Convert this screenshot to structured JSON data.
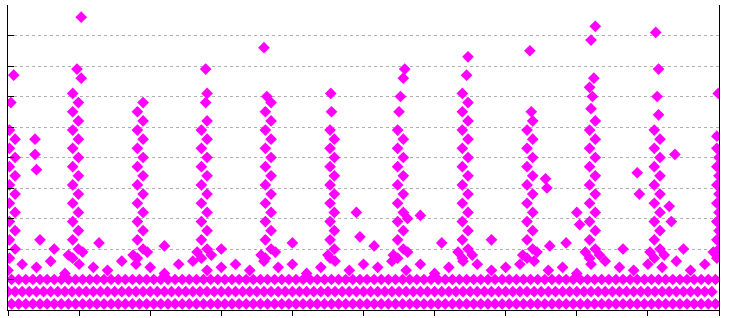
{
  "chart_data": {
    "type": "scatter",
    "color": "#ff00ff",
    "marker": "diamond",
    "grid": true,
    "tick_labels": false,
    "xlim": [
      0,
      10
    ],
    "xticks": [
      0,
      1,
      2,
      3,
      4,
      5,
      6,
      7,
      8,
      9,
      10
    ],
    "ylim": [
      0,
      10
    ],
    "yticks": [
      0,
      1,
      2,
      3,
      4,
      5,
      6,
      7,
      8,
      9,
      10
    ],
    "x": [
      0.05,
      0.15,
      0.25,
      0.35,
      0.45,
      0.55,
      0.65,
      0.75,
      0.85,
      0.95,
      1.05,
      1.15,
      1.25,
      1.35,
      1.45,
      1.55,
      1.65,
      1.75,
      1.85,
      1.95,
      2.05,
      2.15,
      2.25,
      2.35,
      2.45,
      2.55,
      2.65,
      2.75,
      2.85,
      2.95,
      3.05,
      3.15,
      3.25,
      3.35,
      3.45,
      3.55,
      3.65,
      3.75,
      3.85,
      3.95,
      4.05,
      4.15,
      4.25,
      4.35,
      4.45,
      4.55,
      4.65,
      4.75,
      4.85,
      4.95,
      5.05,
      5.15,
      5.25,
      5.35,
      5.45,
      5.55,
      5.65,
      5.75,
      5.85,
      5.95,
      6.05,
      6.15,
      6.25,
      6.35,
      6.45,
      6.55,
      6.65,
      6.75,
      6.85,
      6.95,
      7.05,
      7.15,
      7.25,
      7.35,
      7.45,
      7.55,
      7.65,
      7.75,
      7.85,
      7.95,
      8.05,
      8.15,
      8.25,
      8.35,
      8.45,
      8.55,
      8.65,
      8.75,
      8.85,
      8.95,
      9.05,
      9.15,
      9.25,
      9.35,
      9.45,
      9.55,
      9.65,
      9.75,
      9.85,
      9.95,
      0,
      0.1,
      0.2,
      0.3,
      0.4,
      0.5,
      0.6,
      0.7,
      0.8,
      0.9,
      1,
      1.1,
      1.2,
      1.3,
      1.4,
      1.5,
      1.6,
      1.7,
      1.8,
      1.9,
      2,
      2.1,
      2.2,
      2.3,
      2.4,
      2.5,
      2.6,
      2.7,
      2.8,
      2.9,
      3,
      3.1,
      3.2,
      3.3,
      3.4,
      3.5,
      3.6,
      3.7,
      3.8,
      3.9,
      4,
      4.1,
      4.2,
      4.3,
      4.4,
      4.5,
      4.6,
      4.7,
      4.8,
      4.9,
      5,
      5.1,
      5.2,
      5.3,
      5.4,
      5.5,
      5.6,
      5.7,
      5.8,
      5.9,
      6,
      6.1,
      6.2,
      6.3,
      6.4,
      6.5,
      6.6,
      6.7,
      6.8,
      6.9,
      7,
      7.1,
      7.2,
      7.3,
      7.4,
      7.5,
      7.6,
      7.7,
      7.8,
      7.9,
      8,
      8.1,
      8.2,
      8.3,
      8.4,
      8.5,
      8.6,
      8.7,
      8.8,
      8.9,
      9,
      9.1,
      9.2,
      9.3,
      9.4,
      9.5,
      9.6,
      9.7,
      9.8,
      9.9,
      0.05,
      0.15,
      0.25,
      0.35,
      0.45,
      0.55,
      0.65,
      0.75,
      0.85,
      0.95,
      1.05,
      1.15,
      1.25,
      1.35,
      1.45,
      1.55,
      1.65,
      1.75,
      1.85,
      1.95,
      2.05,
      2.15,
      2.25,
      2.35,
      2.45,
      2.55,
      2.65,
      2.75,
      2.85,
      2.95,
      3.05,
      3.15,
      3.25,
      3.35,
      3.45,
      3.55,
      3.65,
      3.75,
      3.85,
      3.95,
      4.05,
      4.15,
      4.25,
      4.35,
      4.45,
      4.55,
      4.65,
      4.75,
      4.85,
      4.95,
      5.05,
      5.15,
      5.25,
      5.35,
      5.45,
      5.55,
      5.65,
      5.75,
      5.85,
      5.95,
      6.05,
      6.15,
      6.25,
      6.35,
      6.45,
      6.55,
      6.65,
      6.75,
      6.85,
      6.95,
      7.05,
      7.15,
      7.25,
      7.35,
      7.45,
      7.55,
      7.65,
      7.75,
      7.85,
      7.95,
      8.05,
      8.15,
      8.25,
      8.35,
      8.45,
      8.55,
      8.65,
      8.75,
      8.85,
      8.95,
      9.05,
      9.15,
      9.25,
      9.35,
      9.45,
      9.55,
      9.65,
      9.75,
      9.85,
      9.95,
      0,
      0.2,
      0.4,
      0.6,
      0.8,
      1,
      1.2,
      1.4,
      1.6,
      1.8,
      2,
      2.2,
      2.4,
      2.6,
      2.8,
      3,
      3.2,
      3.4,
      3.6,
      3.8,
      4,
      4.2,
      4.4,
      4.6,
      4.8,
      5,
      5.2,
      5.4,
      5.6,
      5.8,
      6,
      6.2,
      6.4,
      6.6,
      6.8,
      7,
      7.2,
      7.4,
      7.6,
      7.8,
      8,
      8.2,
      8.4,
      8.6,
      8.8,
      9,
      9.2,
      9.4,
      9.6,
      9.8,
      4.9,
      5.8,
      0.65,
      1.28,
      2.2,
      3.0,
      4.0,
      4.95,
      5.15,
      6.8,
      6.1,
      7.62,
      7.85,
      8.65,
      9.5,
      0.45,
      0.02,
      0.1,
      0.02,
      0.1,
      0.02,
      0.1,
      0.02,
      0.1,
      0.02,
      0.1,
      0.02,
      0.1,
      0.02,
      0.1,
      0.02,
      0.08,
      0.04,
      0.38,
      0.38,
      0.4,
      0.91,
      0.99,
      0.91,
      0.99,
      0.91,
      0.99,
      0.91,
      0.99,
      0.91,
      0.99,
      0.91,
      0.99,
      0.91,
      0.99,
      0.91,
      0.99,
      0.91,
      0.99,
      0.91,
      1.03,
      0.97,
      1.03,
      0.85,
      1.05,
      1.82,
      1.9,
      1.82,
      1.9,
      1.82,
      1.9,
      1.82,
      1.9,
      1.82,
      1.9,
      1.82,
      1.9,
      1.82,
      1.9,
      1.82,
      1.9,
      1.82,
      1.9,
      1.76,
      1.96,
      2.72,
      2.8,
      2.72,
      2.8,
      2.72,
      2.8,
      2.72,
      2.8,
      2.72,
      2.8,
      2.72,
      2.8,
      2.72,
      2.8,
      2.72,
      2.8,
      2.78,
      2.8,
      2.78,
      2.66,
      2.86,
      3.62,
      3.7,
      3.62,
      3.7,
      3.62,
      3.7,
      3.62,
      3.7,
      3.62,
      3.7,
      3.62,
      3.7,
      3.62,
      3.7,
      3.62,
      3.7,
      3.62,
      3.7,
      3.64,
      3.6,
      3.56,
      3.76,
      4.53,
      4.59,
      4.53,
      4.59,
      4.53,
      4.59,
      4.53,
      4.59,
      4.53,
      4.59,
      4.53,
      4.59,
      4.53,
      4.59,
      4.53,
      4.55,
      4.54,
      4.5,
      5.48,
      5.56,
      5.48,
      5.56,
      5.48,
      5.56,
      5.48,
      5.56,
      5.48,
      5.56,
      5.48,
      5.56,
      5.48,
      5.56,
      5.48,
      5.5,
      5.52,
      5.56,
      5.58,
      5.42,
      5.62,
      5.62,
      6.39,
      6.47,
      6.39,
      6.47,
      6.39,
      6.47,
      6.39,
      6.47,
      6.39,
      6.47,
      6.39,
      6.47,
      6.39,
      6.47,
      6.39,
      6.47,
      6.39,
      6.47,
      6.39,
      6.45,
      6.47,
      6.33,
      6.53,
      7.3,
      7.38,
      7.3,
      7.38,
      7.3,
      7.38,
      7.3,
      7.38,
      7.3,
      7.38,
      7.3,
      7.38,
      7.3,
      7.38,
      7.3,
      7.38,
      7.36,
      7.34,
      7.24,
      7.44,
      7.56,
      7.58,
      8.18,
      8.26,
      8.18,
      8.26,
      8.18,
      8.26,
      8.18,
      8.26,
      8.18,
      8.26,
      8.18,
      8.26,
      8.18,
      8.26,
      8.18,
      8.26,
      8.2,
      8.22,
      8.18,
      8.24,
      8.2,
      8.26,
      8.12,
      8.32,
      8.0,
      8.04,
      9.09,
      9.17,
      9.09,
      9.17,
      9.09,
      9.17,
      9.09,
      9.17,
      9.09,
      9.17,
      9.09,
      9.17,
      9.09,
      9.17,
      9.09,
      9.15,
      9.13,
      9.15,
      9.11,
      9.03,
      9.23,
      9.38,
      8.85,
      8.88,
      9.3,
      9.33,
      9.97,
      10,
      9.97,
      10,
      9.97,
      10,
      9.97,
      10,
      9.97,
      10,
      9.97,
      10,
      9.97,
      9.99,
      9.97,
      9.92
    ],
    "values": [
      0.2,
      0.2,
      0.2,
      0.2,
      0.2,
      0.2,
      0.2,
      0.2,
      0.2,
      0.2,
      0.2,
      0.2,
      0.2,
      0.2,
      0.2,
      0.2,
      0.2,
      0.2,
      0.2,
      0.2,
      0.2,
      0.2,
      0.2,
      0.2,
      0.2,
      0.2,
      0.2,
      0.2,
      0.2,
      0.2,
      0.2,
      0.2,
      0.2,
      0.2,
      0.2,
      0.2,
      0.2,
      0.2,
      0.2,
      0.2,
      0.2,
      0.2,
      0.2,
      0.2,
      0.2,
      0.2,
      0.2,
      0.2,
      0.2,
      0.2,
      0.2,
      0.2,
      0.2,
      0.2,
      0.2,
      0.2,
      0.2,
      0.2,
      0.2,
      0.2,
      0.2,
      0.2,
      0.2,
      0.2,
      0.2,
      0.2,
      0.2,
      0.2,
      0.2,
      0.2,
      0.2,
      0.2,
      0.2,
      0.2,
      0.2,
      0.2,
      0.2,
      0.2,
      0.2,
      0.2,
      0.2,
      0.2,
      0.2,
      0.2,
      0.2,
      0.2,
      0.2,
      0.2,
      0.2,
      0.2,
      0.2,
      0.2,
      0.2,
      0.2,
      0.2,
      0.2,
      0.2,
      0.2,
      0.2,
      0.2,
      0.6,
      0.6,
      0.6,
      0.6,
      0.6,
      0.6,
      0.6,
      0.6,
      0.6,
      0.6,
      0.6,
      0.6,
      0.6,
      0.6,
      0.6,
      0.6,
      0.6,
      0.6,
      0.6,
      0.6,
      0.6,
      0.6,
      0.6,
      0.6,
      0.6,
      0.6,
      0.6,
      0.6,
      0.6,
      0.6,
      0.6,
      0.6,
      0.6,
      0.6,
      0.6,
      0.6,
      0.6,
      0.6,
      0.6,
      0.6,
      0.6,
      0.6,
      0.6,
      0.6,
      0.6,
      0.6,
      0.6,
      0.6,
      0.6,
      0.6,
      0.6,
      0.6,
      0.6,
      0.6,
      0.6,
      0.6,
      0.6,
      0.6,
      0.6,
      0.6,
      0.6,
      0.6,
      0.6,
      0.6,
      0.6,
      0.6,
      0.6,
      0.6,
      0.6,
      0.6,
      0.6,
      0.6,
      0.6,
      0.6,
      0.6,
      0.6,
      0.6,
      0.6,
      0.6,
      0.6,
      0.6,
      0.6,
      0.6,
      0.6,
      0.6,
      0.6,
      0.6,
      0.6,
      0.6,
      0.6,
      0.6,
      0.6,
      0.6,
      0.6,
      0.6,
      0.6,
      0.6,
      0.6,
      0.6,
      0.6,
      1,
      1,
      1,
      1,
      1,
      1,
      1,
      1,
      1,
      1,
      1,
      1,
      1,
      1,
      1,
      1,
      1,
      1,
      1,
      1,
      1,
      1,
      1,
      1,
      1,
      1,
      1,
      1,
      1,
      1,
      1,
      1,
      1,
      1,
      1,
      1,
      1,
      1,
      1,
      1,
      1,
      1,
      1,
      1,
      1,
      1,
      1,
      1,
      1,
      1,
      1,
      1,
      1,
      1,
      1,
      1,
      1,
      1,
      1,
      1,
      1,
      1,
      1,
      1,
      1,
      1,
      1,
      1,
      1,
      1,
      1,
      1,
      1,
      1,
      1,
      1,
      1,
      1,
      1,
      1,
      1,
      1,
      1,
      1,
      1,
      1,
      1,
      1,
      1,
      1,
      1,
      1,
      1,
      1,
      1,
      1,
      1,
      1,
      1,
      1,
      1.3,
      1.5,
      1.4,
      1.6,
      1.2,
      1.5,
      1.4,
      1.3,
      1.6,
      1.5,
      1.4,
      1.2,
      1.5,
      1.6,
      1.3,
      1.4,
      1.5,
      1.3,
      1.6,
      1.4,
      1.5,
      1.2,
      1.4,
      1.6,
      1.3,
      1.5,
      1.4,
      1.6,
      1.3,
      1.5,
      1.2,
      1.4,
      1.6,
      1.5,
      1.3,
      1.4,
      1.5,
      1.6,
      1.3,
      1.4,
      1.2,
      1.5,
      1.6,
      1.4,
      1.3,
      1.5,
      1.4,
      1.6,
      1.3,
      1.5,
      3.2,
      3.1,
      2.0,
      2.2,
      2.1,
      2.0,
      2.2,
      2.4,
      2.1,
      2.3,
      2.2,
      2.1,
      2.2,
      2.0,
      2.0,
      2.3,
      1.7,
      2.0,
      2.3,
      2.6,
      2.9,
      3.2,
      3.5,
      3.8,
      4.1,
      4.4,
      4.7,
      5.0,
      5.3,
      5.6,
      5.9,
      7.7,
      6.8,
      5.6,
      5.1,
      4.6,
      1.7,
      2.0,
      2.3,
      2.6,
      2.9,
      3.2,
      3.5,
      3.8,
      4.1,
      4.4,
      4.7,
      5.0,
      5.3,
      5.6,
      5.9,
      6.2,
      6.5,
      6.8,
      7.1,
      7.6,
      7.9,
      9.6,
      1.8,
      1.9,
      1.7,
      2.0,
      2.3,
      2.6,
      2.9,
      3.2,
      3.5,
      3.8,
      4.1,
      4.4,
      4.7,
      5.0,
      5.3,
      5.6,
      5.9,
      6.2,
      6.5,
      6.8,
      1.8,
      1.9,
      1.7,
      2.0,
      2.3,
      2.6,
      2.9,
      3.2,
      3.5,
      3.8,
      4.1,
      4.4,
      4.7,
      5.0,
      5.3,
      5.6,
      5.9,
      6.2,
      6.8,
      7.1,
      7.9,
      1.9,
      1.8,
      1.7,
      2.0,
      2.3,
      2.6,
      2.9,
      3.2,
      3.5,
      3.8,
      4.1,
      4.4,
      4.7,
      5.0,
      5.3,
      5.6,
      5.9,
      6.2,
      6.5,
      6.8,
      7.0,
      8.6,
      1.8,
      1.9,
      1.7,
      2.0,
      2.3,
      2.6,
      2.9,
      3.2,
      3.5,
      3.8,
      4.1,
      4.4,
      4.7,
      5.0,
      5.3,
      5.6,
      5.9,
      6.5,
      7.1,
      1.8,
      1.7,
      2.0,
      2.3,
      2.6,
      2.9,
      3.2,
      3.5,
      3.8,
      4.1,
      4.4,
      4.7,
      5.0,
      5.3,
      5.6,
      5.9,
      6.5,
      7.0,
      7.6,
      7.9,
      1.8,
      1.9,
      3.0,
      1.7,
      2.0,
      2.3,
      2.6,
      2.9,
      3.2,
      3.5,
      3.8,
      4.1,
      4.4,
      4.7,
      5.0,
      5.3,
      5.6,
      5.9,
      6.2,
      6.5,
      6.8,
      7.1,
      7.7,
      8.3,
      1.9,
      1.8,
      1.7,
      2.0,
      2.3,
      2.6,
      2.9,
      3.2,
      3.5,
      3.8,
      4.1,
      4.4,
      4.7,
      5.0,
      5.3,
      5.6,
      5.9,
      6.2,
      6.5,
      8.5,
      1.8,
      1.9,
      4.3,
      4.0,
      1.7,
      2.0,
      2.3,
      2.6,
      2.9,
      3.2,
      3.5,
      3.8,
      4.1,
      4.4,
      4.7,
      5.0,
      5.3,
      5.6,
      5.9,
      6.2,
      6.6,
      7.0,
      7.3,
      7.6,
      8.85,
      9.3,
      1.9,
      1.8,
      3.2,
      2.8,
      1.7,
      2.0,
      2.3,
      2.6,
      2.9,
      3.2,
      3.5,
      3.8,
      4.1,
      4.4,
      4.7,
      5.0,
      5.3,
      5.6,
      5.9,
      6.4,
      7.0,
      7.9,
      9.1,
      1.9,
      1.8,
      5.1,
      4.5,
      3.8,
      3.4,
      2.9,
      1.7,
      2.0,
      2.3,
      2.6,
      2.9,
      3.2,
      3.5,
      3.8,
      4.1,
      4.4,
      4.7,
      5.0,
      5.3,
      7.1,
      5.7,
      1.9
    ]
  }
}
